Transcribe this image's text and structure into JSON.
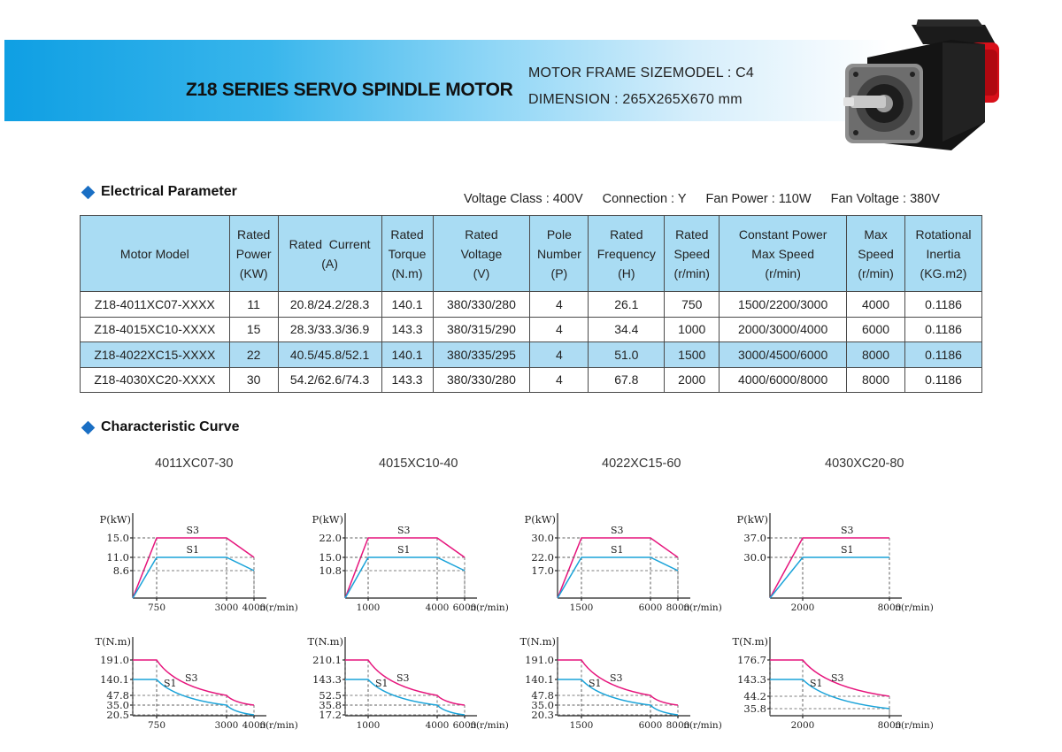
{
  "header": {
    "title": "Z18 SERIES SERVO SPINDLE MOTOR",
    "frame_size": "MOTOR FRAME SIZEMODEL : C4",
    "dimension": "DIMENSION : 265X265X670 mm"
  },
  "electrical": {
    "section_title": "Electrical Parameter",
    "voltage_class": "Voltage Class : 400V",
    "connection": "Connection : Y",
    "fan_power": "Fan Power : 110W",
    "fan_voltage": "Fan Voltage : 380V",
    "columns": [
      [
        "Motor Model"
      ],
      [
        "Rated",
        "Power",
        "(KW)"
      ],
      [
        "Rated  Current",
        "(A)"
      ],
      [
        "Rated",
        "Torque",
        "(N.m)"
      ],
      [
        "Rated",
        "Voltage",
        "(V)"
      ],
      [
        "Pole",
        "Number",
        "(P)"
      ],
      [
        "Rated",
        "Frequency",
        "(H)"
      ],
      [
        "Rated",
        "Speed",
        "(r/min)"
      ],
      [
        "Constant Power",
        "Max Speed",
        "(r/min)"
      ],
      [
        "Max",
        "Speed",
        "(r/min)"
      ],
      [
        "Rotational",
        "Inertia",
        "(KG.m2)"
      ]
    ],
    "rows": [
      [
        "Z18-4011XC07-XXXX",
        "11",
        "20.8/24.2/28.3",
        "140.1",
        "380/330/280",
        "4",
        "26.1",
        "750",
        "1500/2200/3000",
        "4000",
        "0.1186"
      ],
      [
        "Z18-4015XC10-XXXX",
        "15",
        "28.3/33.3/36.9",
        "143.3",
        "380/315/290",
        "4",
        "34.4",
        "1000",
        "2000/3000/4000",
        "6000",
        "0.1186"
      ],
      [
        "Z18-4022XC15-XXXX",
        "22",
        "40.5/45.8/52.1",
        "140.1",
        "380/335/295",
        "4",
        "51.0",
        "1500",
        "3000/4500/6000",
        "8000",
        "0.1186"
      ],
      [
        "Z18-4030XC20-XXXX",
        "30",
        "54.2/62.6/74.3",
        "143.3",
        "380/330/280",
        "4",
        "67.8",
        "2000",
        "4000/6000/8000",
        "8000",
        "0.1186"
      ]
    ],
    "highlight_row": 2,
    "highlight_color": "#aedcf3",
    "header_color": "#a9dcf3"
  },
  "curves": {
    "section_title": "Characteristic Curve",
    "accent_color": "#1a6fc4",
    "s3_color": "#e6147c",
    "s1_color": "#1aa3d9",
    "p_axis_label": "P(kW)",
    "t_axis_label": "T(N.m)",
    "x_axis_label": "n(r/min)",
    "s3_label": "S3",
    "s1_label": "S1",
    "models": [
      {
        "name": "4011XC07-30",
        "x_ticks": [
          "750",
          "3000",
          "4000"
        ],
        "power": {
          "s3": [
            [
              0,
              0
            ],
            [
              750,
              15.0
            ],
            [
              3000,
              15.0
            ],
            [
              4000,
              11.0
            ]
          ],
          "s1": [
            [
              0,
              0
            ],
            [
              750,
              11.0
            ],
            [
              3000,
              11.0
            ],
            [
              4000,
              8.6
            ]
          ],
          "y_ticks": [
            "15.0",
            "11.0",
            "8.6"
          ]
        },
        "torque": {
          "s3": [
            [
              0,
              191.0
            ],
            [
              750,
              191.0
            ],
            [
              3000,
              47.8
            ],
            [
              4000,
              35.0
            ]
          ],
          "s1": [
            [
              0,
              140.1
            ],
            [
              750,
              140.1
            ],
            [
              3000,
              35.0
            ],
            [
              4000,
              20.5
            ]
          ],
          "y_ticks": [
            "191.0",
            "140.1",
            "47.8",
            "35.0",
            "20.5"
          ]
        }
      },
      {
        "name": "4015XC10-40",
        "x_ticks": [
          "1000",
          "4000",
          "6000"
        ],
        "power": {
          "s3": [
            [
              0,
              0
            ],
            [
              1000,
              22.0
            ],
            [
              4000,
              22.0
            ],
            [
              6000,
              15.0
            ]
          ],
          "s1": [
            [
              0,
              0
            ],
            [
              1000,
              15.0
            ],
            [
              4000,
              15.0
            ],
            [
              6000,
              10.8
            ]
          ],
          "y_ticks": [
            "22.0",
            "15.0",
            "10.8"
          ]
        },
        "torque": {
          "s3": [
            [
              0,
              210.1
            ],
            [
              1000,
              210.1
            ],
            [
              4000,
              52.5
            ],
            [
              6000,
              35.8
            ]
          ],
          "s1": [
            [
              0,
              143.3
            ],
            [
              1000,
              143.3
            ],
            [
              4000,
              35.8
            ],
            [
              6000,
              17.2
            ]
          ],
          "y_ticks": [
            "210.1",
            "143.3",
            "52.5",
            "35.8",
            "17.2"
          ]
        }
      },
      {
        "name": "4022XC15-60",
        "x_ticks": [
          "1500",
          "6000",
          "8000"
        ],
        "power": {
          "s3": [
            [
              0,
              0
            ],
            [
              1500,
              30.0
            ],
            [
              6000,
              30.0
            ],
            [
              8000,
              22.0
            ]
          ],
          "s1": [
            [
              0,
              0
            ],
            [
              1500,
              22.0
            ],
            [
              6000,
              22.0
            ],
            [
              8000,
              17.0
            ]
          ],
          "y_ticks": [
            "30.0",
            "22.0",
            "17.0"
          ]
        },
        "torque": {
          "s3": [
            [
              0,
              191.0
            ],
            [
              1500,
              191.0
            ],
            [
              6000,
              47.8
            ],
            [
              8000,
              35.0
            ]
          ],
          "s1": [
            [
              0,
              140.1
            ],
            [
              1500,
              140.1
            ],
            [
              6000,
              35.0
            ],
            [
              8000,
              20.3
            ]
          ],
          "y_ticks": [
            "191.0",
            "140.1",
            "47.8",
            "35.0",
            "20.3"
          ]
        }
      },
      {
        "name": "4030XC20-80",
        "x_ticks": [
          "2000",
          "8000"
        ],
        "power": {
          "s3": [
            [
              0,
              0
            ],
            [
              2000,
              37.0
            ],
            [
              8000,
              37.0
            ]
          ],
          "s1": [
            [
              0,
              0
            ],
            [
              2000,
              30.0
            ],
            [
              8000,
              30.0
            ]
          ],
          "y_ticks": [
            "37.0",
            "30.0"
          ]
        },
        "torque": {
          "s3": [
            [
              0,
              176.7
            ],
            [
              2000,
              176.7
            ],
            [
              8000,
              44.2
            ]
          ],
          "s1": [
            [
              0,
              143.3
            ],
            [
              2000,
              143.3
            ],
            [
              8000,
              35.8
            ]
          ],
          "y_ticks": [
            "176.7",
            "143.3",
            "44.2",
            "35.8"
          ]
        }
      }
    ]
  }
}
